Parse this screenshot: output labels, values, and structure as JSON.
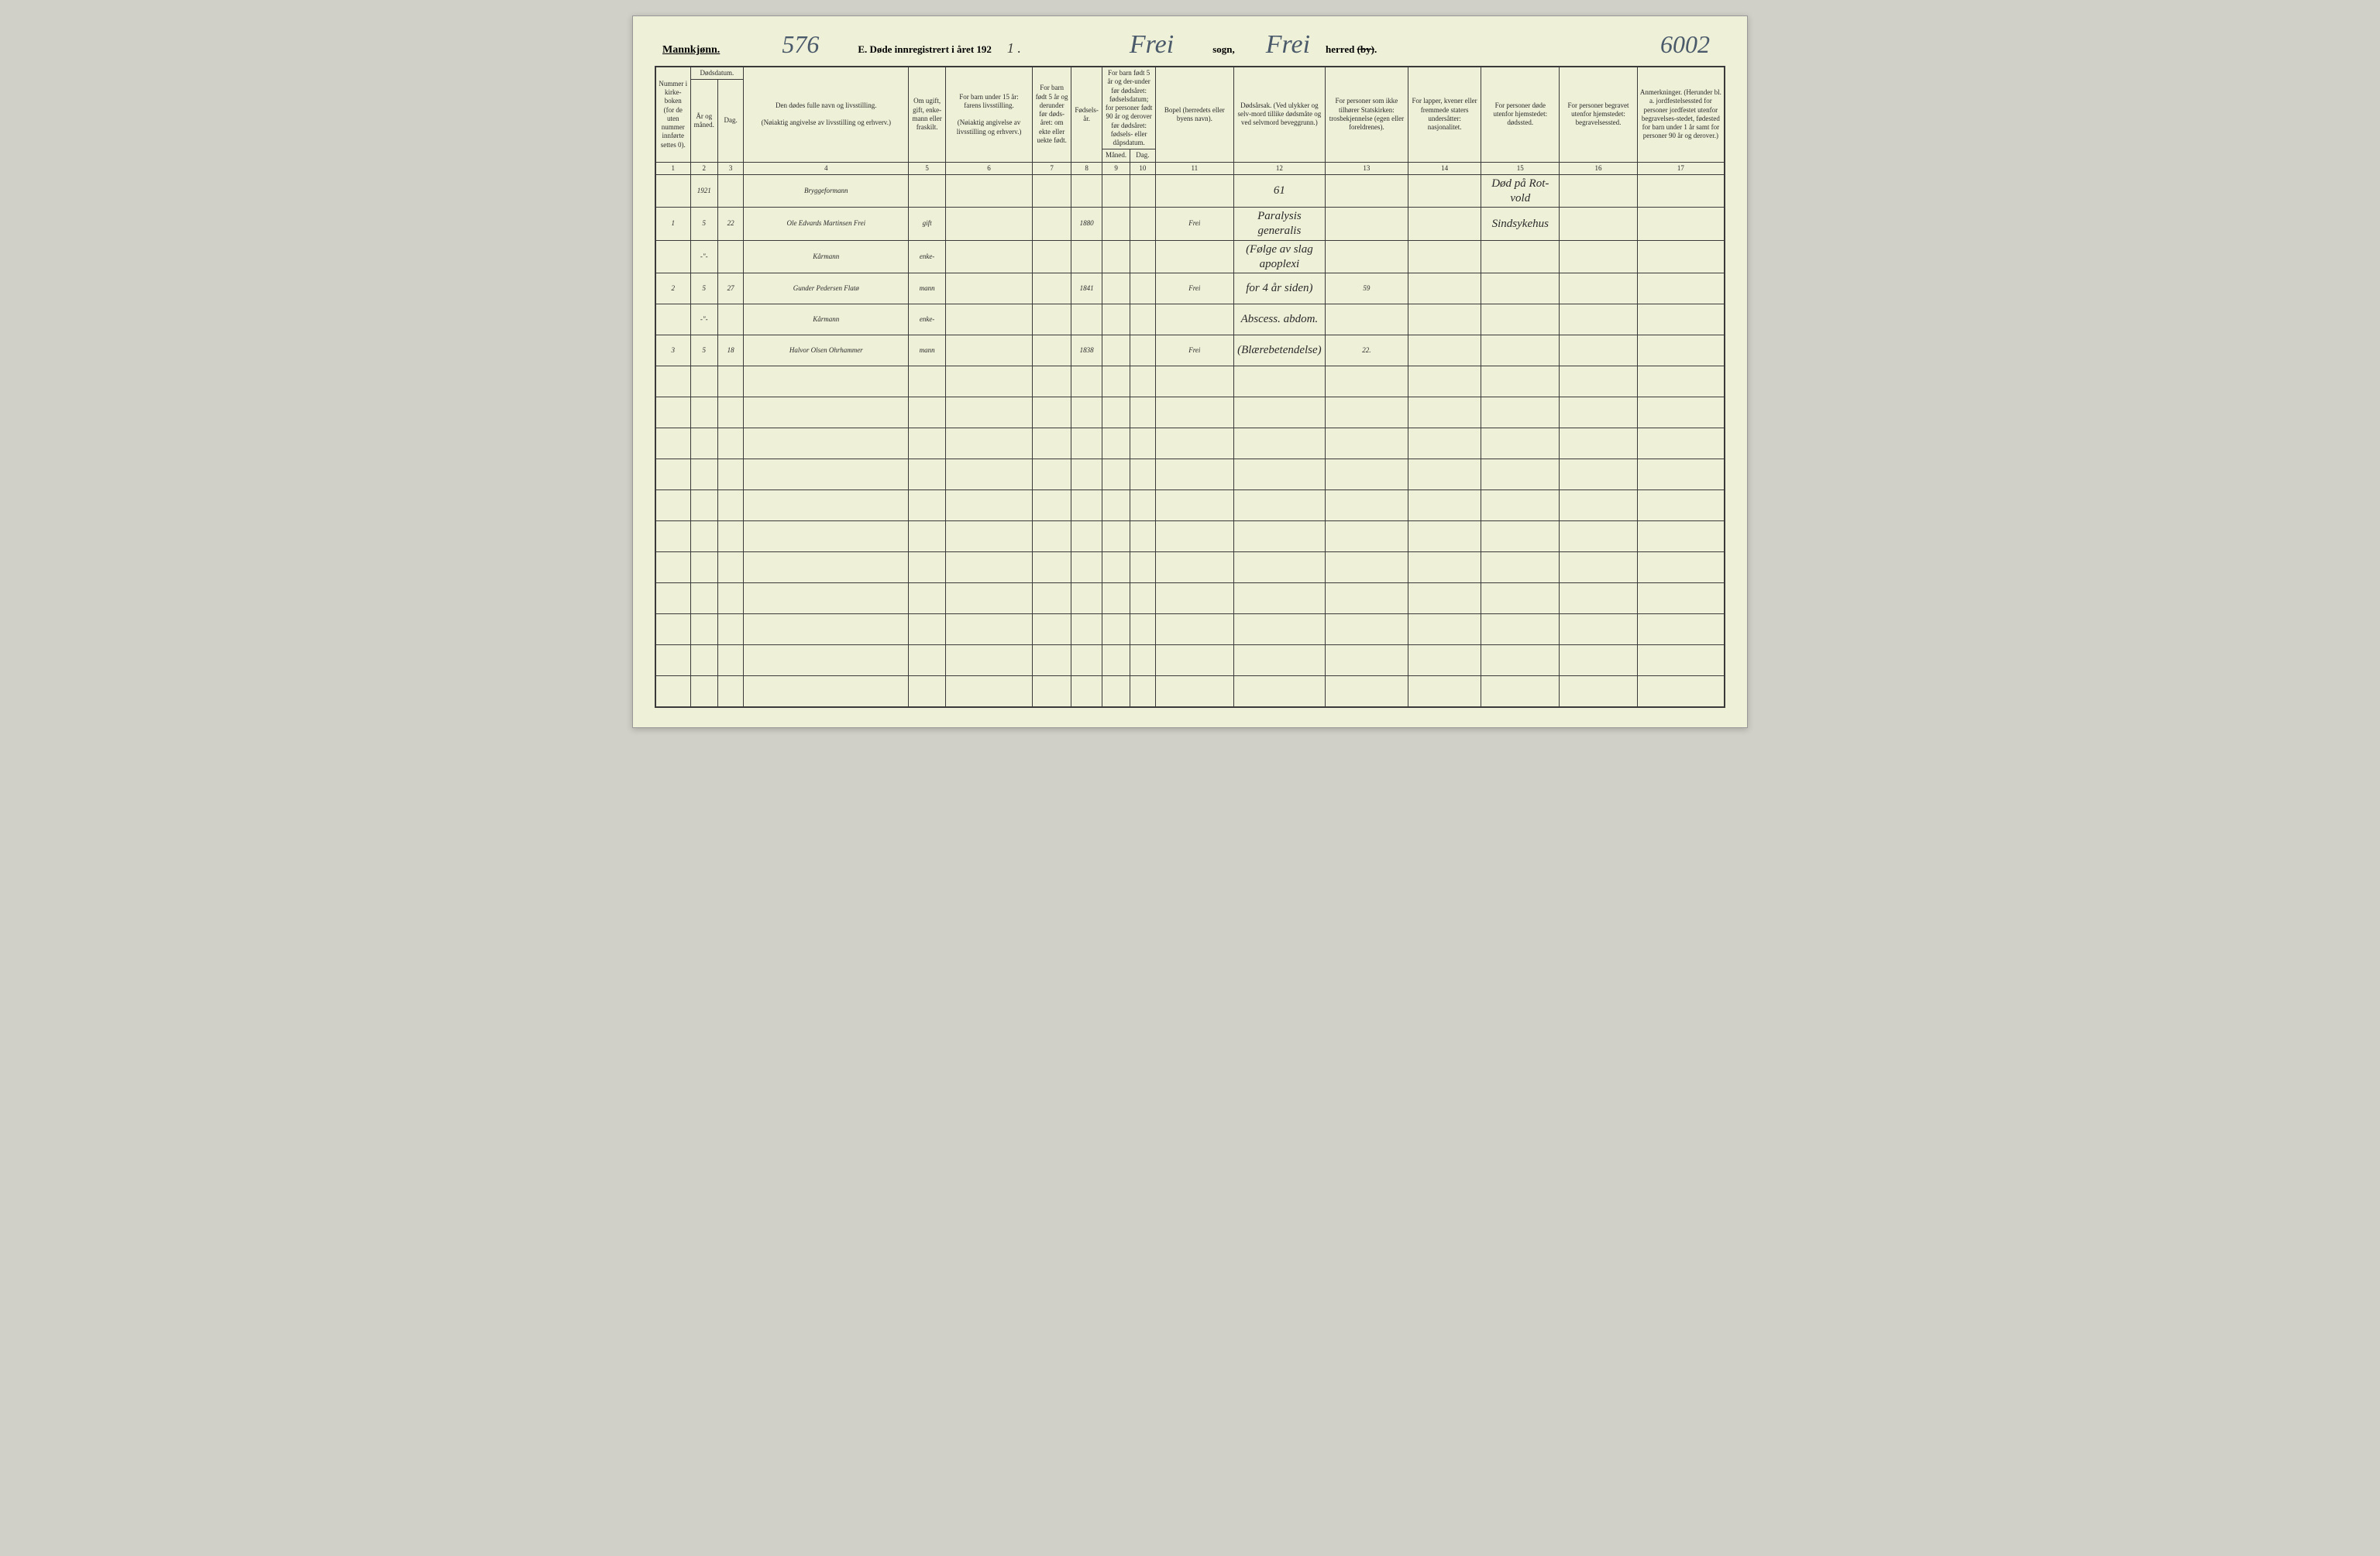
{
  "header": {
    "mannkjonn": "Mannkjønn.",
    "page_left": "576",
    "title": "E.  Døde innregistrert i året 192",
    "year_tail": "1 .",
    "sogn": "Frei",
    "sogn_label": "sogn,",
    "herred": "Frei",
    "herred_label": "herred",
    "by_strike": "(by)",
    "period": ".",
    "page_right": "6002"
  },
  "columns": {
    "c1": "Nummer i kirke-boken (for de uten nummer innførte settes 0).",
    "c2_top": "Dødsdatum.",
    "c2a": "År og måned.",
    "c2b": "Dag.",
    "c4a": "Den dødes fulle navn og livsstilling.",
    "c4b": "(Nøiaktig angivelse av livsstilling og erhverv.)",
    "c5": "Om ugift, gift, enke-mann eller fraskilt.",
    "c6a": "For barn under 15 år:",
    "c6b": "farens livsstilling.",
    "c6c": "(Nøiaktig angivelse av livsstilling og erhverv.)",
    "c7": "For barn født 5 år og derunder før døds-året: om ekte eller uekte født.",
    "c8": "Fødsels-år.",
    "c9top": "For barn født 5 år og der-under før dødsåret: fødselsdatum; for personer født 90 år og derover før dødsåret: fødsels- eller dåpsdatum.",
    "c9a": "Måned.",
    "c9b": "Dag.",
    "c11": "Bopel (herredets eller byens navn).",
    "c12": "Dødsårsak. (Ved ulykker og selv-mord tillike dødsmåte og ved selvmord beveggrunn.)",
    "c13": "For personer som ikke tilhører Statskirken: trosbekjennelse (egen eller foreldrenes).",
    "c14": "For lapper, kvener eller fremmede staters undersåtter: nasjonalitet.",
    "c15": "For personer døde utenfor hjemstedet: dødssted.",
    "c16": "For personer begravet utenfor hjemstedet: begravelsessted.",
    "c17": "Anmerkninger. (Herunder bl. a. jordfestelsessted for personer jordfestet utenfor begravelses-stedet, fødested for barn under 1 år samt for personer 90 år og derover.)"
  },
  "colnums": [
    "1",
    "2",
    "3",
    "4",
    "5",
    "6",
    "7",
    "8",
    "9",
    "10",
    "11",
    "12",
    "13",
    "14",
    "15",
    "16",
    "17"
  ],
  "rows": [
    {
      "num": "",
      "year": "1921",
      "day": "",
      "name": "Bryggeformann",
      "status": "",
      "col6": "",
      "col7": "",
      "byear": "",
      "m": "",
      "d": "",
      "bopel": "",
      "cause": "61",
      "c13": "",
      "c14": "",
      "c15": "Død på Rot-vold",
      "c16": "",
      "c17": ""
    },
    {
      "num": "1",
      "year": "5",
      "day": "22",
      "name": "Ole Edvards Martinsen Frei",
      "status": "gift",
      "col6": "",
      "col7": "",
      "byear": "1880",
      "m": "",
      "d": "",
      "bopel": "Frei",
      "cause": "Paralysis generalis",
      "c13": "",
      "c14": "",
      "c15": "Sindsykehus",
      "c16": "",
      "c17": ""
    },
    {
      "num": "",
      "year": "-\"-",
      "day": "",
      "name": "Kårmann",
      "status": "enke-",
      "col6": "",
      "col7": "",
      "byear": "",
      "m": "",
      "d": "",
      "bopel": "",
      "cause": "(Følge av slag apoplexi",
      "c13": "",
      "c14": "",
      "c15": "",
      "c16": "",
      "c17": ""
    },
    {
      "num": "2",
      "year": "5",
      "day": "27",
      "name": "Gunder Pedersen Flatø",
      "status": "mann",
      "col6": "",
      "col7": "",
      "byear": "1841",
      "m": "",
      "d": "",
      "bopel": "Frei",
      "cause": "for 4 år siden)",
      "c13": "59",
      "c14": "",
      "c15": "",
      "c16": "",
      "c17": ""
    },
    {
      "num": "",
      "year": "-\"-",
      "day": "",
      "name": "Kårmann",
      "status": "enke-",
      "col6": "",
      "col7": "",
      "byear": "",
      "m": "",
      "d": "",
      "bopel": "",
      "cause": "Abscess. abdom.",
      "c13": "",
      "c14": "",
      "c15": "",
      "c16": "",
      "c17": ""
    },
    {
      "num": "3",
      "year": "5",
      "day": "18",
      "name": "Halvor Olsen Ohrhammer",
      "status": "mann",
      "col6": "",
      "col7": "",
      "byear": "1838",
      "m": "",
      "d": "",
      "bopel": "Frei",
      "cause": "(Blærebetendelse)",
      "c13": "22.",
      "c14": "",
      "c15": "",
      "c16": "",
      "c17": ""
    }
  ],
  "empty_rows": 11,
  "colors": {
    "paper": "#eef0d8",
    "ink": "#2a2a2a",
    "handwriting": "#3a4a5a",
    "border": "#3a3a3a"
  }
}
